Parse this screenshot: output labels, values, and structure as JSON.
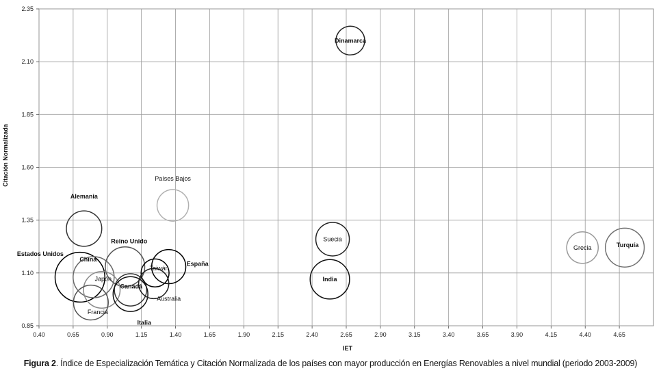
{
  "chart_data": {
    "type": "scatter",
    "xlabel": "IET",
    "ylabel": "Citación Normalizada",
    "xlim": [
      0.4,
      4.9
    ],
    "ylim": [
      0.85,
      2.35
    ],
    "xticks": [
      "0.40",
      "0.65",
      "0.90",
      "1.15",
      "1.40",
      "1.65",
      "1.90",
      "2.15",
      "2.40",
      "2.65",
      "2.90",
      "3.15",
      "3.40",
      "3.65",
      "3.90",
      "4.15",
      "4.40",
      "4.65"
    ],
    "yticks": [
      "0.85",
      "1.10",
      "1.35",
      "1.60",
      "1.85",
      "2.10",
      "2.35"
    ],
    "grid": true,
    "points": [
      {
        "name": "Dinamarca",
        "x": 2.68,
        "y": 2.2,
        "size": 1.0,
        "color": "#222222",
        "bold": true
      },
      {
        "name": "Países Bajos",
        "x": 1.38,
        "y": 1.42,
        "size": 1.2,
        "color": "#b0b0b0",
        "bold": false
      },
      {
        "name": "Alemania",
        "x": 0.73,
        "y": 1.31,
        "size": 1.5,
        "color": "#333333",
        "bold": true
      },
      {
        "name": "Reino Unido",
        "x": 1.03,
        "y": 1.13,
        "size": 1.85,
        "color": "#555555",
        "bold": true
      },
      {
        "name": "Estados Unidos",
        "x": 0.7,
        "y": 1.08,
        "size": 2.9,
        "color": "#000000",
        "bold": true
      },
      {
        "name": "China",
        "x": 0.8,
        "y": 1.08,
        "size": 2.0,
        "color": "#6a6a6a",
        "bold": true
      },
      {
        "name": "Japón",
        "x": 0.86,
        "y": 1.02,
        "size": 1.6,
        "color": "#8a8a8a",
        "bold": false
      },
      {
        "name": "Francia",
        "x": 0.78,
        "y": 0.96,
        "size": 1.45,
        "color": "#555555",
        "bold": false
      },
      {
        "name": "Canadá",
        "x": 1.07,
        "y": 1.02,
        "size": 1.25,
        "color": "#333333",
        "bold": true
      },
      {
        "name": "Italia",
        "x": 1.07,
        "y": 1.0,
        "size": 1.45,
        "color": "#111111",
        "bold": true
      },
      {
        "name": "Taiwán",
        "x": 1.25,
        "y": 1.1,
        "size": 0.95,
        "color": "#000000",
        "bold": false
      },
      {
        "name": "España",
        "x": 1.35,
        "y": 1.13,
        "size": 1.4,
        "color": "#000000",
        "bold": true
      },
      {
        "name": "Australia",
        "x": 1.24,
        "y": 1.05,
        "size": 1.1,
        "color": "#222222",
        "bold": false
      },
      {
        "name": "Suecia",
        "x": 2.55,
        "y": 1.26,
        "size": 1.35,
        "color": "#222222",
        "bold": false
      },
      {
        "name": "India",
        "x": 2.53,
        "y": 1.07,
        "size": 1.85,
        "color": "#111111",
        "bold": true
      },
      {
        "name": "Grecia",
        "x": 4.38,
        "y": 1.22,
        "size": 1.2,
        "color": "#9a9a9a",
        "bold": false
      },
      {
        "name": "Turquía",
        "x": 4.69,
        "y": 1.22,
        "size": 1.8,
        "color": "#707070",
        "bold": true
      }
    ]
  },
  "caption": {
    "bold": "Figura 2",
    "text": ". Índice de Especialización Temática y Citación Normalizada de los países con mayor producción en Energías Renovables a nivel mundial (periodo 2003-2009)"
  }
}
